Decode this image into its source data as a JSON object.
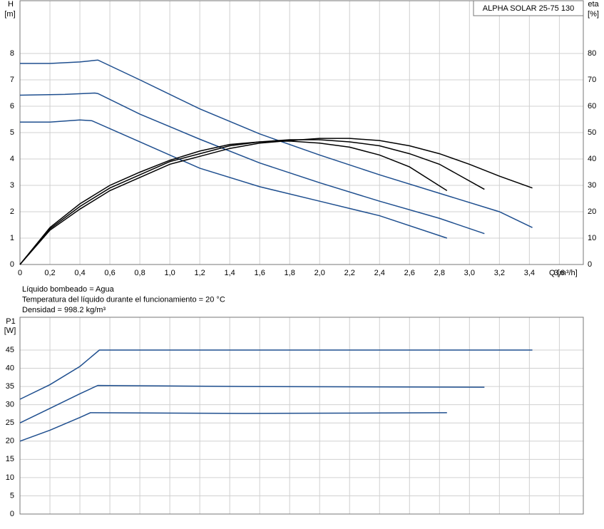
{
  "chart_data": [
    {
      "type": "line",
      "title": "ALPHA SOLAR 25-75  130",
      "ylabel": "H",
      "yunit": "[m]",
      "y2label": "eta",
      "y2unit": "[%]",
      "xlabel": "Q [m³/h]",
      "annotations": [
        "Líquido bombeado = Agua",
        "Temperatura del líquido durante el funcionamiento = 20 °C",
        "Densidad = 998.2 kg/m³"
      ],
      "xlim": [
        0,
        3.76
      ],
      "xticks": [
        0,
        {
          "value": 0.2,
          "label": "0,2"
        },
        {
          "value": 0.4,
          "label": "0,4"
        },
        {
          "value": 0.6,
          "label": "0,6"
        },
        {
          "value": 0.8,
          "label": "0,8"
        },
        {
          "value": 1.0,
          "label": "1,0"
        },
        {
          "value": 1.2,
          "label": "1,2"
        },
        {
          "value": 1.4,
          "label": "1,4"
        },
        {
          "value": 1.6,
          "label": "1,6"
        },
        {
          "value": 1.8,
          "label": "1,8"
        },
        {
          "value": 2.0,
          "label": "2,0"
        },
        {
          "value": 2.2,
          "label": "2,2"
        },
        {
          "value": 2.4,
          "label": "2,4"
        },
        {
          "value": 2.6,
          "label": "2,6"
        },
        {
          "value": 2.8,
          "label": "2,8"
        },
        {
          "value": 3.0,
          "label": "3,0"
        },
        {
          "value": 3.2,
          "label": "3,2"
        },
        {
          "value": 3.4,
          "label": "3,4"
        },
        {
          "value": 3.6,
          "label": "3,6"
        }
      ],
      "ylim": [
        0,
        10
      ],
      "yticks": [
        0,
        1,
        2,
        3,
        4,
        5,
        6,
        7,
        8
      ],
      "y2lim": [
        0,
        100
      ],
      "y2ticks": [
        0,
        10,
        20,
        30,
        40,
        50,
        60,
        70,
        80
      ],
      "grid": true,
      "series": [
        {
          "color": "#1f4f8f",
          "x": [
            0,
            0.2,
            0.4,
            0.52,
            0.8,
            1.2,
            1.6,
            2.0,
            2.4,
            2.8,
            3.2,
            3.42
          ],
          "values": [
            7.62,
            7.62,
            7.68,
            7.75,
            7.0,
            5.9,
            4.95,
            4.15,
            3.4,
            2.7,
            2.0,
            1.4
          ]
        },
        {
          "color": "#1f4f8f",
          "x": [
            0,
            0.3,
            0.5,
            0.52,
            0.8,
            1.2,
            1.6,
            2.0,
            2.4,
            2.8,
            3.1
          ],
          "values": [
            6.42,
            6.45,
            6.5,
            6.48,
            5.7,
            4.75,
            3.85,
            3.1,
            2.4,
            1.75,
            1.17
          ]
        },
        {
          "color": "#1f4f8f",
          "x": [
            0,
            0.2,
            0.4,
            0.48,
            0.8,
            1.2,
            1.6,
            2.0,
            2.4,
            2.85
          ],
          "values": [
            5.4,
            5.4,
            5.48,
            5.45,
            4.65,
            3.65,
            2.95,
            2.4,
            1.85,
            1.0
          ]
        },
        {
          "color": "#000000",
          "axis": "y2",
          "x": [
            0,
            0.2,
            0.4,
            0.6,
            0.8,
            1.0,
            1.2,
            1.4,
            1.6,
            1.8,
            2.0,
            2.2,
            2.4,
            2.6,
            2.8,
            3.0,
            3.2,
            3.42
          ],
          "values": [
            0,
            13,
            21,
            28,
            33,
            38,
            41,
            44,
            46,
            47,
            47.8,
            47.8,
            47,
            45,
            42,
            38,
            33.5,
            29
          ]
        },
        {
          "color": "#000000",
          "axis": "y2",
          "x": [
            0,
            0.2,
            0.4,
            0.6,
            0.8,
            1.0,
            1.2,
            1.4,
            1.6,
            1.8,
            2.0,
            2.2,
            2.4,
            2.6,
            2.8,
            3.1
          ],
          "values": [
            0,
            13.5,
            22,
            29,
            34,
            39,
            42,
            45,
            46.5,
            47.3,
            47.3,
            46.5,
            45,
            42,
            38,
            28.5
          ]
        },
        {
          "color": "#000000",
          "axis": "y2",
          "x": [
            0,
            0.2,
            0.4,
            0.6,
            0.8,
            1.0,
            1.2,
            1.4,
            1.6,
            1.8,
            2.0,
            2.2,
            2.4,
            2.6,
            2.85
          ],
          "values": [
            0,
            14,
            23,
            30,
            35,
            39.5,
            43,
            45.5,
            46.5,
            46.8,
            46,
            44.5,
            41.5,
            37,
            28
          ]
        }
      ]
    },
    {
      "type": "line",
      "ylabel": "P1",
      "yunit": "[W]",
      "xlim": [
        0,
        3.76
      ],
      "ylim": [
        0,
        54
      ],
      "yticks": [
        0,
        5,
        10,
        15,
        20,
        25,
        30,
        35,
        40,
        45
      ],
      "grid": true,
      "series": [
        {
          "color": "#1f4f8f",
          "x": [
            0,
            0.2,
            0.4,
            0.53,
            3.42
          ],
          "values": [
            31.5,
            35.5,
            40.5,
            45,
            45
          ]
        },
        {
          "color": "#1f4f8f",
          "x": [
            0,
            0.2,
            0.4,
            0.52,
            1.5,
            3.1
          ],
          "values": [
            25,
            29,
            33,
            35.3,
            35,
            34.8
          ]
        },
        {
          "color": "#1f4f8f",
          "x": [
            0,
            0.2,
            0.4,
            0.47,
            1.5,
            2.85
          ],
          "values": [
            20,
            23,
            26.5,
            27.8,
            27.6,
            27.8
          ]
        }
      ]
    }
  ]
}
